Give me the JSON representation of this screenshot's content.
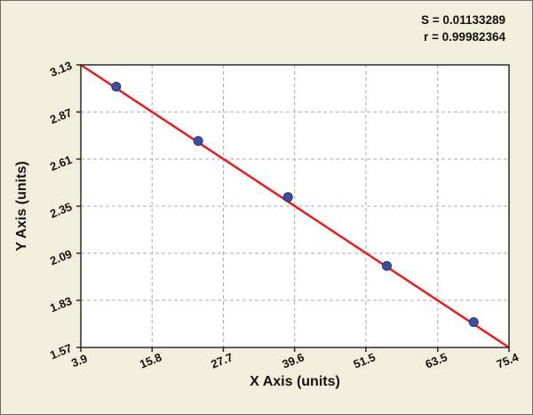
{
  "chart_data": {
    "type": "scatter",
    "title": "",
    "xlabel": "X Axis (units)",
    "ylabel": "Y Axis (units)",
    "x_tick_labels": [
      "3.9",
      "15.8",
      "27.7",
      "39.6",
      "51.5",
      "63.5",
      "75.4"
    ],
    "y_tick_labels": [
      "1.57",
      "1.83",
      "2.09",
      "2.35",
      "2.61",
      "2.87",
      "3.13"
    ],
    "xlim": [
      3.9,
      75.4
    ],
    "ylim": [
      1.57,
      3.13
    ],
    "grid": true,
    "legend": "none",
    "points": [
      {
        "x": 9.8,
        "y": 3.01
      },
      {
        "x": 23.5,
        "y": 2.71
      },
      {
        "x": 38.5,
        "y": 2.4
      },
      {
        "x": 55.0,
        "y": 2.02
      },
      {
        "x": 69.5,
        "y": 1.71
      }
    ],
    "fit_line": {
      "x1": 3.9,
      "y1": 3.13,
      "x2": 75.4,
      "y2": 1.57
    },
    "annotations": {
      "s": "S = 0.01133289",
      "r": "r = 0.99982364"
    },
    "colors": {
      "background": "#f1eedb",
      "plot_bg": "#ffffff",
      "line": "#e81c1c",
      "point_fill": "#3b4ea3",
      "point_edge": "#26346f",
      "grid": "#ababab",
      "frame": "#2a2a2a",
      "text": "#111111"
    }
  }
}
